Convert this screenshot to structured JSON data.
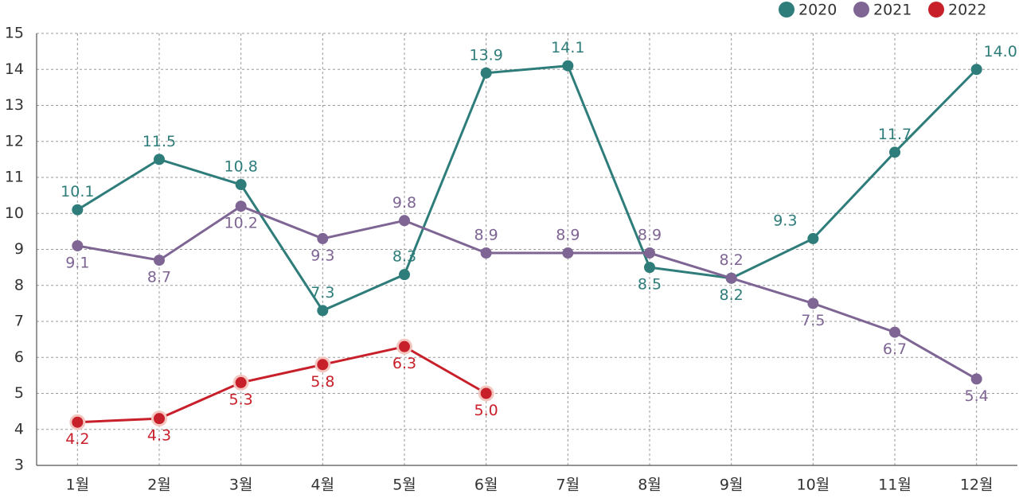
{
  "chart_data": {
    "type": "line",
    "categories": [
      "1월",
      "2월",
      "3월",
      "4월",
      "5월",
      "6월",
      "7월",
      "8월",
      "9월",
      "10월",
      "11월",
      "12월"
    ],
    "series": [
      {
        "name": "2020",
        "color": "#2e7d7a",
        "values": [
          10.1,
          11.5,
          10.8,
          7.3,
          8.3,
          13.9,
          14.1,
          8.5,
          8.2,
          9.3,
          11.7,
          14.0
        ],
        "value_labels": [
          "10.1",
          "11.5",
          "10.8",
          "7.3",
          "8.3",
          "13.9",
          "14.1",
          "8.5",
          "8.2",
          "9.3",
          "11.7",
          "14.0"
        ]
      },
      {
        "name": "2021",
        "color": "#7e6594",
        "values": [
          9.1,
          8.7,
          10.2,
          9.3,
          9.8,
          8.9,
          8.9,
          8.9,
          8.2,
          7.5,
          6.7,
          5.4
        ],
        "value_labels": [
          "9.1",
          "8.7",
          "10.2",
          "9.3",
          "9.8",
          "8.9",
          "8.9",
          "8.9",
          "8.2",
          "7.5",
          "6.7",
          "5.4"
        ]
      },
      {
        "name": "2022",
        "color": "#c8202a",
        "values": [
          4.2,
          4.3,
          5.3,
          5.8,
          6.3,
          5.0,
          null,
          null,
          null,
          null,
          null,
          null
        ],
        "value_labels": [
          "4.2",
          "4.3",
          "5.3",
          "5.8",
          "6.3",
          "5.0",
          null,
          null,
          null,
          null,
          null,
          null
        ]
      }
    ],
    "ylim": [
      3,
      15
    ],
    "yticks": [
      3,
      4,
      5,
      6,
      7,
      8,
      9,
      10,
      11,
      12,
      13,
      14,
      15
    ],
    "grid": true,
    "legend": "top-right"
  }
}
